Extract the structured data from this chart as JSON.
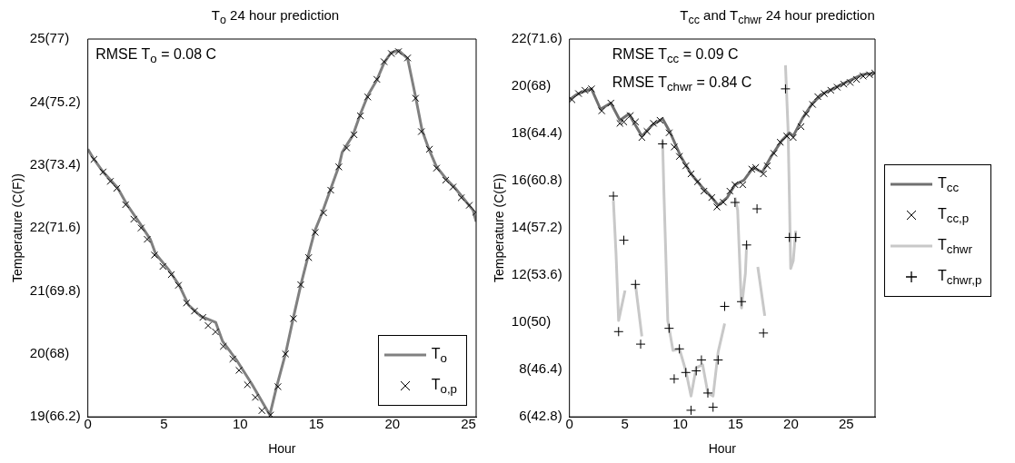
{
  "chart_data": [
    {
      "type": "line",
      "title": "T$_{o}$ 24 hour prediction",
      "xlabel": "Hour",
      "ylabel": "Temperature (C(F))",
      "annotations": [
        "RMSE T$_{o}$ = 0.08 C"
      ],
      "xlim": [
        0,
        25.5
      ],
      "xticks": [
        0,
        5,
        10,
        15,
        20,
        25
      ],
      "ylim": [
        19,
        25
      ],
      "yticks": [
        19,
        20,
        21,
        22,
        23,
        24,
        25
      ],
      "y2lim": [
        66.2,
        77
      ],
      "y2ticks": [
        {
          "value": 66.2,
          "label": "(66.2)"
        },
        {
          "value": 68,
          "label": "(68)"
        },
        {
          "value": 69.8,
          "label": "(69.8)"
        },
        {
          "value": 71.6,
          "label": "(71.6)"
        },
        {
          "value": 73.4,
          "label": "(73.4)"
        },
        {
          "value": 75.2,
          "label": "(75.2)"
        },
        {
          "value": 77,
          "label": "(77)"
        }
      ],
      "grid": false,
      "legend": "bottom right",
      "series": [
        {
          "name": "T$_{o}$",
          "type": "line",
          "marker": "none",
          "color": "#808080",
          "x": [
            0,
            0.4,
            1.0,
            1.95,
            2.55,
            3.4,
            4.1,
            4.45,
            5.3,
            6.0,
            6.6,
            7.4,
            8.4,
            8.85,
            9.8,
            10.75,
            11.95,
            12.4,
            13.0,
            13.5,
            14.0,
            14.45,
            14.9,
            15.4,
            15.9,
            16.5,
            16.7,
            17.4,
            17.9,
            18.4,
            19.0,
            19.45,
            19.9,
            20.4,
            21.0,
            21.5,
            21.95,
            22.4,
            22.9,
            23.6,
            24.1,
            24.7,
            25.3,
            25.5
          ],
          "values": [
            23.25,
            23.09,
            22.89,
            22.64,
            22.38,
            22.08,
            21.82,
            21.59,
            21.34,
            21.09,
            20.78,
            20.6,
            20.5,
            20.2,
            19.89,
            19.53,
            19.03,
            19.48,
            20.02,
            20.58,
            21.11,
            21.54,
            21.95,
            22.25,
            22.59,
            22.99,
            23.2,
            23.47,
            23.81,
            24.11,
            24.36,
            24.62,
            24.78,
            24.82,
            24.69,
            24.11,
            23.55,
            23.25,
            22.97,
            22.76,
            22.64,
            22.46,
            22.28,
            22.1
          ]
        },
        {
          "name": "T$_{o,p}$",
          "type": "scatter",
          "marker": "x",
          "color": "#000000",
          "x": [
            0.4,
            1.0,
            1.48,
            1.9,
            2.48,
            3.02,
            3.5,
            3.9,
            4.38,
            4.93,
            5.48,
            5.95,
            6.48,
            7.0,
            7.55,
            7.9,
            8.38,
            8.9,
            9.52,
            9.93,
            10.48,
            11.0,
            11.43,
            12.0,
            12.48,
            12.98,
            13.5,
            13.98,
            14.5,
            14.93,
            15.48,
            15.95,
            16.48,
            17.0,
            17.48,
            17.9,
            18.38,
            18.98,
            19.45,
            19.93,
            20.4,
            21.0,
            21.52,
            21.9,
            22.43,
            22.9,
            23.5,
            23.98,
            24.52,
            25.05,
            25.48
          ],
          "values": [
            23.09,
            22.89,
            22.74,
            22.63,
            22.37,
            22.14,
            22.0,
            21.82,
            21.57,
            21.39,
            21.26,
            21.09,
            20.81,
            20.68,
            20.58,
            20.45,
            20.35,
            20.12,
            19.92,
            19.74,
            19.51,
            19.31,
            19.1,
            19.03,
            19.48,
            20.0,
            20.56,
            21.1,
            21.53,
            21.93,
            22.24,
            22.6,
            22.97,
            23.27,
            23.48,
            23.78,
            24.08,
            24.36,
            24.64,
            24.77,
            24.8,
            24.7,
            24.06,
            23.53,
            23.25,
            22.95,
            22.76,
            22.65,
            22.48,
            22.36,
            22.25
          ]
        }
      ]
    },
    {
      "type": "line",
      "title": "T$_{cc}$ and T$_{chwr}$ 24 hour prediction",
      "xlabel": "Hour",
      "ylabel": "Temperature (C(F))",
      "annotations": [
        "RMSE T$_{cc}$ = 0.09 C",
        "RMSE T$_{chwr}$ = 0.84 C"
      ],
      "xlim": [
        0,
        27.6
      ],
      "xticks": [
        0,
        5,
        10,
        15,
        20,
        25
      ],
      "ylim": [
        6,
        22
      ],
      "yticks": [
        6,
        8,
        10,
        12,
        14,
        16,
        18,
        20,
        22
      ],
      "y2lim": [
        42.8,
        71.6
      ],
      "y2ticks": [
        {
          "value": 42.8,
          "label": "(42.8)"
        },
        {
          "value": 46.4,
          "label": "(46.4)"
        },
        {
          "value": 50,
          "label": "(50)"
        },
        {
          "value": 53.6,
          "label": "(53.6)"
        },
        {
          "value": 57.2,
          "label": "(57.2)"
        },
        {
          "value": 60.8,
          "label": "(60.8)"
        },
        {
          "value": 64.4,
          "label": "(64.4)"
        },
        {
          "value": 68,
          "label": "(68)"
        },
        {
          "value": 71.6,
          "label": "(71.6)"
        }
      ],
      "grid": false,
      "legend": "right",
      "series": [
        {
          "name": "T$_{cc}$",
          "type": "line",
          "marker": "none",
          "color": "#707070",
          "x": [
            0,
            0.58,
            1.17,
            1.99,
            2.8,
            3.74,
            4.56,
            5.37,
            6.54,
            7.48,
            8.41,
            9.11,
            10.05,
            10.98,
            11.92,
            12.85,
            13.43,
            14.25,
            14.95,
            15.77,
            16.59,
            17.41,
            18.22,
            19.16,
            19.86,
            20.21,
            21.03,
            21.96,
            22.9,
            24.07,
            25.23,
            26.4,
            27.57
          ],
          "values": [
            19.43,
            19.63,
            19.76,
            19.89,
            19.03,
            19.29,
            18.56,
            18.83,
            17.89,
            18.36,
            18.63,
            18.03,
            17.03,
            16.29,
            15.76,
            15.29,
            14.96,
            15.29,
            15.83,
            16.03,
            16.56,
            16.36,
            17.03,
            17.69,
            18.03,
            17.89,
            18.63,
            19.29,
            19.69,
            19.96,
            20.23,
            20.49,
            20.56
          ]
        },
        {
          "name": "T$_{cc,p}$",
          "type": "scatter",
          "marker": "x",
          "color": "#000000",
          "x": [
            0.23,
            0.82,
            1.4,
            1.99,
            2.92,
            3.74,
            4.56,
            4.91,
            5.49,
            5.96,
            6.54,
            7.01,
            7.59,
            8.18,
            9.0,
            9.46,
            9.93,
            10.51,
            10.98,
            11.57,
            12.15,
            12.85,
            13.32,
            13.9,
            14.49,
            14.95,
            15.65,
            16.47,
            16.82,
            17.52,
            17.87,
            18.46,
            19.04,
            19.63,
            20.21,
            20.91,
            21.38,
            21.96,
            22.43,
            23.01,
            23.6,
            24.18,
            24.77,
            25.35,
            25.93,
            26.52,
            27.1,
            27.57
          ],
          "values": [
            19.43,
            19.69,
            19.83,
            19.89,
            18.96,
            19.29,
            18.43,
            18.49,
            18.76,
            18.49,
            17.83,
            18.09,
            18.43,
            18.56,
            18.03,
            17.43,
            17.03,
            16.63,
            16.29,
            15.96,
            15.56,
            15.29,
            14.89,
            15.09,
            15.56,
            15.83,
            15.83,
            16.49,
            16.56,
            16.29,
            16.63,
            17.16,
            17.63,
            17.89,
            17.83,
            18.29,
            18.83,
            19.23,
            19.56,
            19.69,
            19.83,
            19.96,
            20.09,
            20.16,
            20.29,
            20.43,
            20.49,
            20.56
          ]
        },
        {
          "name": "T$_{chwr}$",
          "type": "line",
          "marker": "none",
          "color": "#c8c8c8",
          "x": [
            3.97,
            4.21,
            4.44,
            5.02,
            5.5,
            5.96,
            6.54,
            7.5,
            8.41,
            8.53,
            8.88,
            9.35,
            9.93,
            10.51,
            10.98,
            11.45,
            12.03,
            12.5,
            12.97,
            13.43,
            14.02,
            14.5,
            14.95,
            15.19,
            15.54,
            15.89,
            16.0,
            16.5,
            17.01,
            17.64,
            18.5,
            19.51,
            19.74,
            19.86,
            19.98,
            20.21,
            20.44
          ],
          "values": [
            15.15,
            12.88,
            10.08,
            11.35,
            null,
            11.61,
            9.41,
            null,
            17.69,
            15.55,
            10.08,
            8.81,
            8.88,
            7.95,
            6.88,
            8.08,
            8.21,
            7.01,
            6.88,
            8.75,
            9.95,
            null,
            15.29,
            14.75,
            10.61,
            12.08,
            13.28,
            null,
            12.35,
            10.28,
            null,
            20.89,
            18.23,
            15.41,
            12.28,
            12.61,
            13.88
          ]
        },
        {
          "name": "T$_{chwr,p}$",
          "type": "scatter",
          "marker": "cross",
          "color": "#000000",
          "x": [
            3.97,
            4.44,
            4.91,
            5.96,
            6.43,
            8.41,
            9.0,
            9.46,
            9.93,
            10.51,
            10.98,
            11.45,
            11.92,
            12.5,
            12.97,
            13.43,
            14.02,
            14.95,
            15.54,
            16.0,
            16.94,
            17.52,
            19.51,
            19.86,
            20.44
          ],
          "values": [
            15.35,
            9.61,
            13.48,
            11.61,
            9.08,
            17.56,
            9.75,
            7.61,
            8.88,
            7.88,
            6.28,
            7.95,
            8.41,
            7.01,
            6.41,
            8.41,
            10.68,
            15.08,
            10.88,
            13.28,
            14.81,
            9.55,
            19.89,
            13.6,
            13.6
          ]
        }
      ]
    }
  ]
}
